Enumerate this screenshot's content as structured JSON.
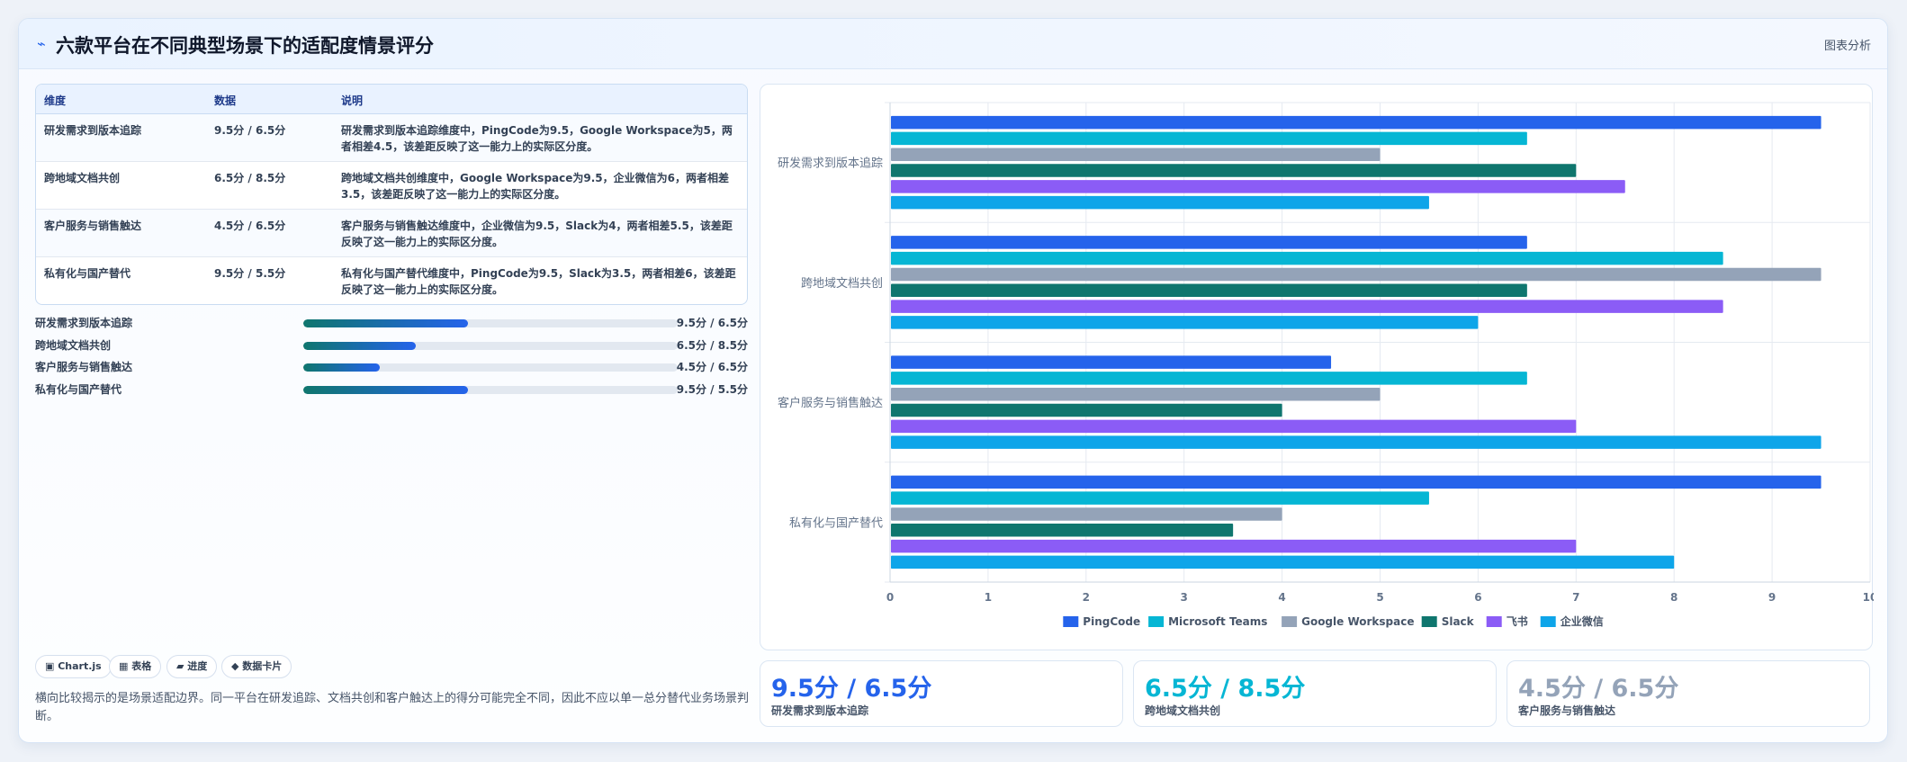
{
  "header": {
    "icon": "chart-line-icon",
    "title": "六款平台在不同典型场景下的适配度情景评分",
    "link": "图表分析"
  },
  "table": {
    "headers": [
      "维度",
      "数据",
      "说明"
    ],
    "rows": [
      {
        "dim": "研发需求到版本追踪",
        "data": "9.5分 / 6.5分",
        "desc": "研发需求到版本追踪维度中，PingCode为9.5，Google Workspace为5，两者相差4.5，该差距反映了这一能力上的实际区分度。"
      },
      {
        "dim": "跨地域文档共创",
        "data": "6.5分 / 8.5分",
        "desc": "跨地域文档共创维度中，Google Workspace为9.5，企业微信为6，两者相差3.5，该差距反映了这一能力上的实际区分度。"
      },
      {
        "dim": "客户服务与销售触达",
        "data": "4.5分 / 6.5分",
        "desc": "客户服务与销售触达维度中，企业微信为9.5，Slack为4，两者相差5.5，该差距反映了这一能力上的实际区分度。"
      },
      {
        "dim": "私有化与国产替代",
        "data": "9.5分 / 5.5分",
        "desc": "私有化与国产替代维度中，PingCode为9.5，Slack为3.5，两者相差6，该差距反映了这一能力上的实际区分度。"
      }
    ]
  },
  "progress": [
    {
      "label": "研发需求到版本追踪",
      "value": "9.5分 / 6.5分",
      "fraction": 0.44
    },
    {
      "label": "跨地域文档共创",
      "value": "6.5分 / 8.5分",
      "fraction": 0.3
    },
    {
      "label": "客户服务与销售触达",
      "value": "4.5分 / 6.5分",
      "fraction": 0.205
    },
    {
      "label": "私有化与国产替代",
      "value": "9.5分 / 5.5分",
      "fraction": 0.44
    }
  ],
  "chips": [
    "▣ Chart.js",
    "▦ 表格",
    "▰ 进度",
    "◆ 数据卡片"
  ],
  "summary": "横向比较揭示的是场景适配边界。同一平台在研发追踪、文档共创和客户触达上的得分可能完全不同，因此不应以单一总分替代业务场景判断。",
  "stats": [
    {
      "value": "9.5分 / 6.5分",
      "label": "研发需求到版本追踪",
      "color": "#2563eb"
    },
    {
      "value": "6.5分 / 8.5分",
      "label": "跨地域文档共创",
      "color": "#06b6d4"
    },
    {
      "value": "4.5分 / 6.5分",
      "label": "客户服务与销售触达",
      "color": "#94a3b8"
    }
  ],
  "chart_data": {
    "type": "bar",
    "orientation": "horizontal",
    "categories": [
      "研发需求到版本追踪",
      "跨地域文档共创",
      "客户服务与销售触达",
      "私有化与国产替代"
    ],
    "series": [
      {
        "name": "PingCode",
        "color": "#2563eb",
        "values": [
          9.5,
          6.5,
          4.5,
          9.5
        ]
      },
      {
        "name": "Microsoft Teams",
        "color": "#06b6d4",
        "values": [
          6.5,
          8.5,
          6.5,
          5.5
        ]
      },
      {
        "name": "Google Workspace",
        "color": "#94a3b8",
        "values": [
          5,
          9.5,
          5,
          4
        ]
      },
      {
        "name": "Slack",
        "color": "#0f766e",
        "values": [
          7,
          6.5,
          4,
          3.5
        ]
      },
      {
        "name": "飞书",
        "color": "#8b5cf6",
        "values": [
          7.5,
          8.5,
          7,
          7
        ]
      },
      {
        "name": "企业微信",
        "color": "#0ea5e9",
        "values": [
          5.5,
          6,
          9.5,
          8
        ]
      }
    ],
    "xlim": [
      0,
      10
    ],
    "xticks": [
      "0",
      "1",
      "2",
      "3",
      "4",
      "5",
      "6",
      "7",
      "8",
      "9",
      "10"
    ],
    "grid": true,
    "legend": "bottom"
  }
}
